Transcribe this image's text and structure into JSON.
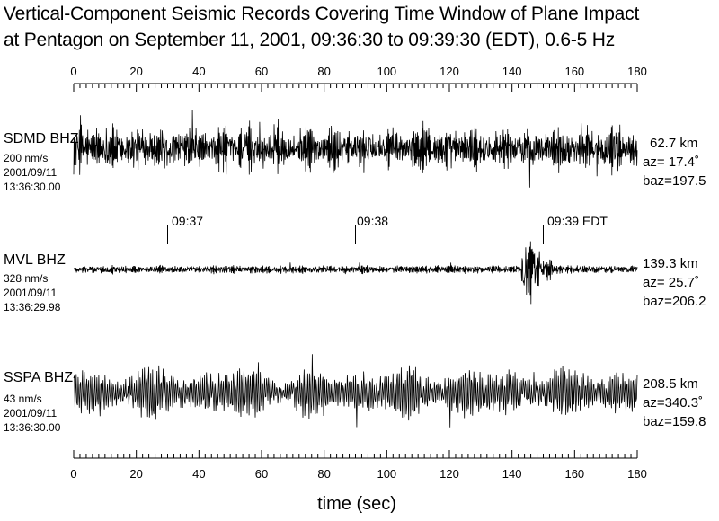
{
  "title_line1": "Vertical-Component Seismic Records Covering Time Window of Plane Impact",
  "title_line2": "at Pentagon on September 11, 2001, 09:36:30 to 09:39:30 (EDT), 0.6-5 Hz",
  "chart_data": {
    "type": "line",
    "title": "Vertical-Component Seismic Records Covering Time Window of Plane Impact at Pentagon on September 11, 2001, 09:36:30 to 09:39:30 (EDT), 0.6-5 Hz",
    "xlabel": "time (sec)",
    "xlim": [
      0,
      180
    ],
    "x_ticks": [
      0,
      20,
      40,
      60,
      80,
      100,
      120,
      140,
      160,
      180
    ],
    "x_tick_labels": [
      "0",
      "20",
      "40",
      "60",
      "80",
      "100",
      "120",
      "140",
      "160",
      "180"
    ],
    "minor_tick_step": 2,
    "grid": false,
    "time_marks": [
      {
        "label": "09:37",
        "x": 30
      },
      {
        "label": "09:38",
        "x": 90
      },
      {
        "label": "09:39 EDT",
        "x": 150
      }
    ],
    "series": [
      {
        "name": "SDMD BHZ",
        "scale": "200 nm/s",
        "date": "2001/09/11",
        "start_time": "13:36:30.00",
        "distance": "62.7 km",
        "az": "az= 17.4˚",
        "baz": "baz=197.5",
        "character": "dense high-frequency noise, nearly full scale throughout"
      },
      {
        "name": "MVL BHZ",
        "scale": "328 nm/s",
        "date": "2001/09/11",
        "start_time": "13:36:29.98",
        "distance": "139.3 km",
        "az": "az= 25.7˚",
        "baz": "baz=206.2",
        "character": "low-amplitude background with a strong burst at about 144-148 s",
        "burst_window": [
          143,
          149
        ]
      },
      {
        "name": "SSPA BHZ",
        "scale": "43 nm/s",
        "date": "2001/09/11",
        "start_time": "13:36:30.00",
        "distance": "208.5 km",
        "az": "az=340.3˚",
        "baz": "baz=159.8",
        "character": "moderate-frequency oscillation, mostly medium amplitude"
      }
    ]
  }
}
